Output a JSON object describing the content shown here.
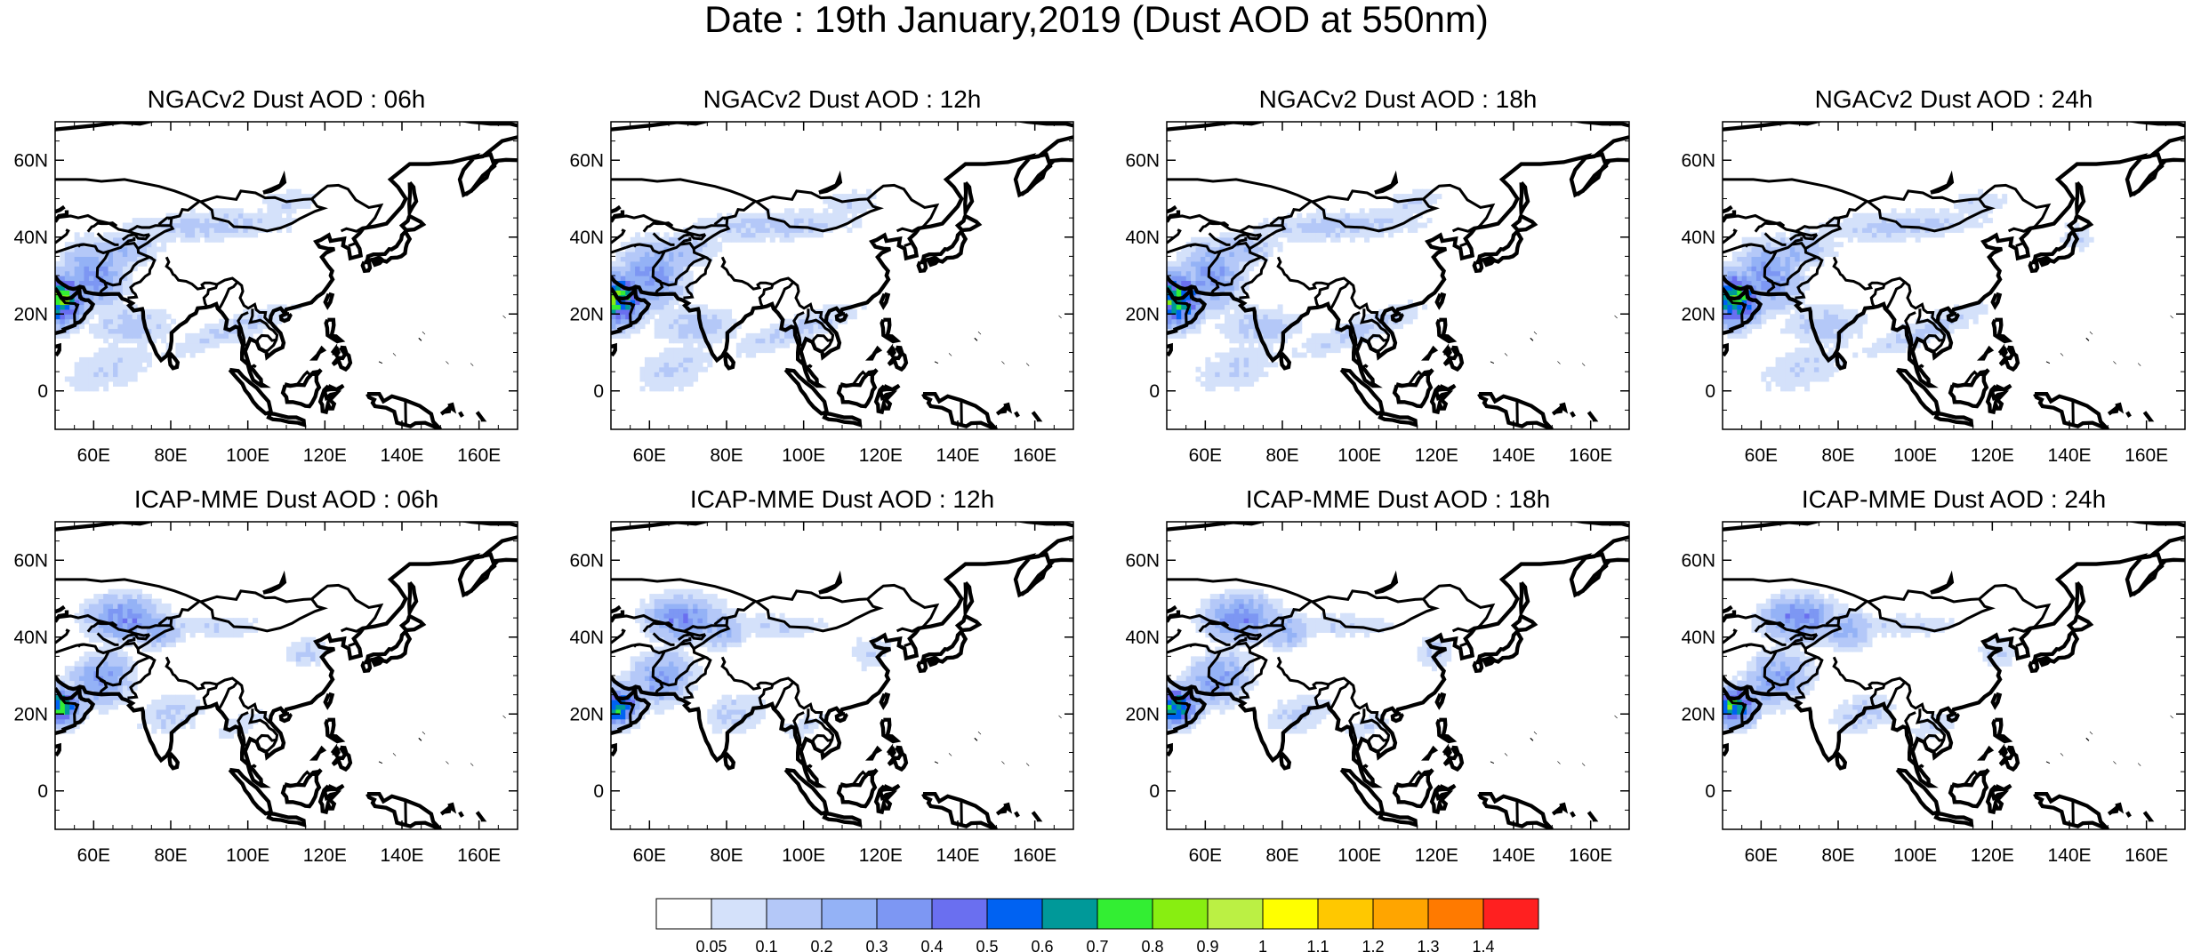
{
  "title": "Date : 19th January,2019 (Dust AOD at 550nm)",
  "panels": [
    {
      "id": "ngac-06",
      "title": "NGACv2 Dust AOD : 06h"
    },
    {
      "id": "ngac-12",
      "title": "NGACv2 Dust AOD : 12h"
    },
    {
      "id": "ngac-18",
      "title": "NGACv2 Dust AOD : 18h"
    },
    {
      "id": "ngac-24",
      "title": "NGACv2 Dust AOD : 24h"
    },
    {
      "id": "icap-06",
      "title": "ICAP-MME Dust AOD : 06h"
    },
    {
      "id": "icap-12",
      "title": "ICAP-MME Dust AOD : 12h"
    },
    {
      "id": "icap-18",
      "title": "ICAP-MME Dust AOD : 18h"
    },
    {
      "id": "icap-24",
      "title": "ICAP-MME Dust AOD : 24h"
    }
  ],
  "map_extent": {
    "lon": [
      50,
      170
    ],
    "lat": [
      -10,
      70
    ]
  },
  "lon_ticks": [
    60,
    80,
    100,
    120,
    140,
    160
  ],
  "lon_tick_labels": [
    "60E",
    "80E",
    "100E",
    "120E",
    "140E",
    "160E"
  ],
  "lat_ticks": [
    0,
    20,
    40,
    60
  ],
  "lat_tick_labels": [
    "0",
    "20N",
    "40N",
    "60N"
  ],
  "colorbar": {
    "labels": [
      "0.05",
      "0.1",
      "0.2",
      "0.3",
      "0.4",
      "0.5",
      "0.6",
      "0.7",
      "0.8",
      "0.9",
      "1",
      "1.1",
      "1.2",
      "1.3",
      "1.4"
    ],
    "colors": [
      "#ffffff",
      "#d4e1fa",
      "#b4c8f8",
      "#94b2f6",
      "#7d97f3",
      "#6a6ff0",
      "#0062f2",
      "#009999",
      "#33ee33",
      "#88ee11",
      "#bbf044",
      "#ffff00",
      "#ffc800",
      "#ffa500",
      "#ff7a00",
      "#ff2020"
    ]
  }
}
